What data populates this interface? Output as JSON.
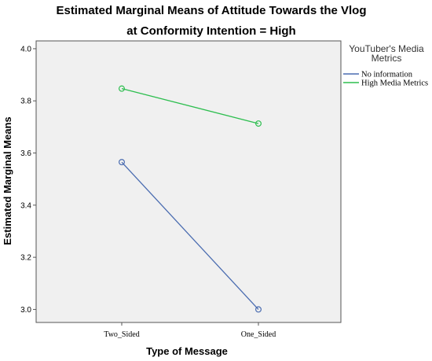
{
  "chart_data": {
    "type": "line",
    "title": "Estimated Marginal Means of Attitude Towards the Vlog",
    "subtitle": "at Conformity Intention = High",
    "xlabel": "Type of Message",
    "ylabel": "Estimated Marginal Means",
    "categories": [
      "Two_Sided",
      "One_Sided"
    ],
    "ylim": [
      2.95,
      4.03
    ],
    "yticks": [
      3.0,
      3.2,
      3.4,
      3.6,
      3.8,
      4.0
    ],
    "ytick_labels": [
      "3.0",
      "3.2",
      "3.4",
      "3.6",
      "3.8",
      "4.0"
    ],
    "grid": false,
    "legend": {
      "title_line1": "YouTuber's Media",
      "title_line2": "Metrics",
      "placement": "right"
    },
    "series": [
      {
        "name": "No information",
        "color": "#4A6CB0",
        "values": [
          3.565,
          3.0
        ]
      },
      {
        "name": "High Media Metrics",
        "color": "#2DBE4F",
        "values": [
          3.847,
          3.713
        ]
      }
    ]
  }
}
